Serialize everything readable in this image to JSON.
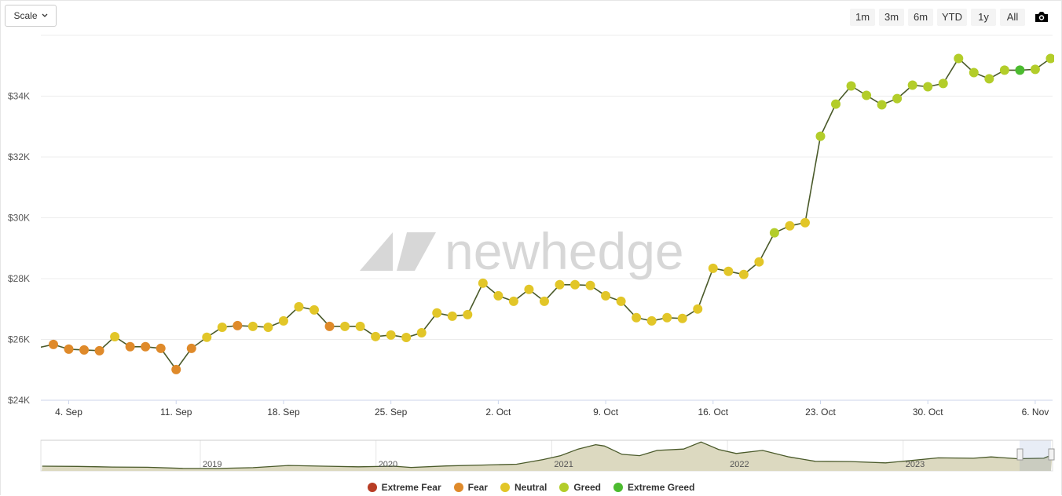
{
  "toolbar": {
    "scale_label": "Scale",
    "ranges": [
      "1m",
      "3m",
      "6m",
      "YTD",
      "1y",
      "All"
    ]
  },
  "colors": {
    "Extreme Fear": "#b83d25",
    "Fear": "#df8a2a",
    "Neutral": "#e2c628",
    "Greed": "#b3cd2a",
    "Extreme Greed": "#4cbb2f",
    "line": "#4a5a2a",
    "navigator_fill": "#dcd9c0"
  },
  "watermark": "newhedge",
  "chart_data": {
    "type": "line",
    "title": "",
    "ylim": [
      24000,
      36000
    ],
    "y_ticks": [
      {
        "v": 24000,
        "label": "$24K"
      },
      {
        "v": 26000,
        "label": "$26K"
      },
      {
        "v": 28000,
        "label": "$28K"
      },
      {
        "v": 30000,
        "label": "$30K"
      },
      {
        "v": 32000,
        "label": "$32K"
      },
      {
        "v": 34000,
        "label": "$34K"
      }
    ],
    "x_ticks": [
      {
        "date": "2023-09-04",
        "label": "4. Sep"
      },
      {
        "date": "2023-09-11",
        "label": "11. Sep"
      },
      {
        "date": "2023-09-18",
        "label": "18. Sep"
      },
      {
        "date": "2023-09-25",
        "label": "25. Sep"
      },
      {
        "date": "2023-10-02",
        "label": "2. Oct"
      },
      {
        "date": "2023-10-09",
        "label": "9. Oct"
      },
      {
        "date": "2023-10-16",
        "label": "16. Oct"
      },
      {
        "date": "2023-10-23",
        "label": "23. Oct"
      },
      {
        "date": "2023-10-30",
        "label": "30. Oct"
      },
      {
        "date": "2023-11-06",
        "label": "6. Nov"
      }
    ],
    "grid": true,
    "legend_position": "bottom",
    "legend": [
      "Extreme Fear",
      "Fear",
      "Neutral",
      "Greed",
      "Extreme Greed"
    ],
    "points": [
      [
        "2023-09-02",
        25730,
        ""
      ],
      [
        "2023-09-03",
        25835,
        "Fear"
      ],
      [
        "2023-09-04",
        25680,
        "Fear"
      ],
      [
        "2023-09-05",
        25655,
        "Fear"
      ],
      [
        "2023-09-06",
        25630,
        "Fear"
      ],
      [
        "2023-09-07",
        26090,
        "Neutral"
      ],
      [
        "2023-09-08",
        25760,
        "Fear"
      ],
      [
        "2023-09-09",
        25760,
        "Fear"
      ],
      [
        "2023-09-10",
        25705,
        "Fear"
      ],
      [
        "2023-09-11",
        25010,
        "Fear"
      ],
      [
        "2023-09-12",
        25705,
        "Fear"
      ],
      [
        "2023-09-13",
        26070,
        "Neutral"
      ],
      [
        "2023-09-14",
        26400,
        "Neutral"
      ],
      [
        "2023-09-15",
        26455,
        "Fear"
      ],
      [
        "2023-09-16",
        26430,
        "Neutral"
      ],
      [
        "2023-09-17",
        26400,
        "Neutral"
      ],
      [
        "2023-09-18",
        26610,
        "Neutral"
      ],
      [
        "2023-09-19",
        27075,
        "Neutral"
      ],
      [
        "2023-09-20",
        26970,
        "Neutral"
      ],
      [
        "2023-09-21",
        26430,
        "Fear"
      ],
      [
        "2023-09-22",
        26430,
        "Neutral"
      ],
      [
        "2023-09-23",
        26430,
        "Neutral"
      ],
      [
        "2023-09-24",
        26095,
        "Neutral"
      ],
      [
        "2023-09-25",
        26145,
        "Neutral"
      ],
      [
        "2023-09-26",
        26065,
        "Neutral"
      ],
      [
        "2023-09-27",
        26220,
        "Neutral"
      ],
      [
        "2023-09-28",
        26870,
        "Neutral"
      ],
      [
        "2023-09-29",
        26765,
        "Neutral"
      ],
      [
        "2023-09-30",
        26815,
        "Neutral"
      ],
      [
        "2023-10-01",
        27850,
        "Neutral"
      ],
      [
        "2023-10-02",
        27435,
        "Neutral"
      ],
      [
        "2023-10-03",
        27255,
        "Neutral"
      ],
      [
        "2023-10-04",
        27645,
        "Neutral"
      ],
      [
        "2023-10-05",
        27255,
        "Neutral"
      ],
      [
        "2023-10-06",
        27800,
        "Neutral"
      ],
      [
        "2023-10-07",
        27800,
        "Neutral"
      ],
      [
        "2023-10-08",
        27775,
        "Neutral"
      ],
      [
        "2023-10-09",
        27435,
        "Neutral"
      ],
      [
        "2023-10-10",
        27255,
        "Neutral"
      ],
      [
        "2023-10-11",
        26715,
        "Neutral"
      ],
      [
        "2023-10-12",
        26610,
        "Neutral"
      ],
      [
        "2023-10-13",
        26715,
        "Neutral"
      ],
      [
        "2023-10-14",
        26690,
        "Neutral"
      ],
      [
        "2023-10-15",
        27000,
        "Neutral"
      ],
      [
        "2023-10-16",
        28340,
        "Neutral"
      ],
      [
        "2023-10-17",
        28240,
        "Neutral"
      ],
      [
        "2023-10-18",
        28135,
        "Neutral"
      ],
      [
        "2023-10-19",
        28550,
        "Neutral"
      ],
      [
        "2023-10-20",
        29505,
        "Greed"
      ],
      [
        "2023-10-21",
        29735,
        "Neutral"
      ],
      [
        "2023-10-22",
        29840,
        "Neutral"
      ],
      [
        "2023-10-23",
        32680,
        "Greed"
      ],
      [
        "2023-10-24",
        33740,
        "Greed"
      ],
      [
        "2023-10-25",
        34335,
        "Greed"
      ],
      [
        "2023-10-26",
        34025,
        "Greed"
      ],
      [
        "2023-10-27",
        33715,
        "Greed"
      ],
      [
        "2023-10-28",
        33920,
        "Greed"
      ],
      [
        "2023-10-29",
        34360,
        "Greed"
      ],
      [
        "2023-10-30",
        34310,
        "Greed"
      ],
      [
        "2023-10-31",
        34415,
        "Greed"
      ],
      [
        "2023-11-01",
        35240,
        "Greed"
      ],
      [
        "2023-11-02",
        34775,
        "Greed"
      ],
      [
        "2023-11-03",
        34570,
        "Greed"
      ],
      [
        "2023-11-04",
        34855,
        "Greed"
      ],
      [
        "2023-11-05",
        34855,
        "Extreme Greed"
      ],
      [
        "2023-11-06",
        34880,
        "Greed"
      ],
      [
        "2023-11-07",
        35240,
        "Greed"
      ]
    ],
    "navigator": {
      "x_labels": [
        "2019",
        "2020",
        "2021",
        "2022",
        "2023"
      ],
      "series": [
        [
          2018.1,
          9000
        ],
        [
          2018.3,
          8500
        ],
        [
          2018.5,
          7000
        ],
        [
          2018.7,
          6500
        ],
        [
          2018.9,
          4000
        ],
        [
          2019.1,
          3700
        ],
        [
          2019.3,
          5500
        ],
        [
          2019.5,
          10500
        ],
        [
          2019.7,
          9000
        ],
        [
          2019.9,
          7500
        ],
        [
          2020.1,
          9000
        ],
        [
          2020.2,
          6000
        ],
        [
          2020.4,
          9500
        ],
        [
          2020.6,
          11500
        ],
        [
          2020.8,
          13500
        ],
        [
          2020.95,
          24000
        ],
        [
          2021.05,
          33000
        ],
        [
          2021.15,
          48000
        ],
        [
          2021.25,
          58000
        ],
        [
          2021.3,
          55000
        ],
        [
          2021.4,
          36000
        ],
        [
          2021.5,
          33000
        ],
        [
          2021.6,
          45000
        ],
        [
          2021.75,
          48000
        ],
        [
          2021.85,
          64000
        ],
        [
          2021.95,
          47000
        ],
        [
          2022.05,
          38000
        ],
        [
          2022.2,
          45000
        ],
        [
          2022.35,
          30000
        ],
        [
          2022.5,
          20000
        ],
        [
          2022.7,
          19500
        ],
        [
          2022.9,
          16500
        ],
        [
          2023.05,
          22000
        ],
        [
          2023.2,
          28000
        ],
        [
          2023.4,
          27000
        ],
        [
          2023.5,
          30000
        ],
        [
          2023.65,
          26000
        ],
        [
          2023.8,
          27000
        ],
        [
          2023.85,
          35000
        ]
      ]
    }
  }
}
